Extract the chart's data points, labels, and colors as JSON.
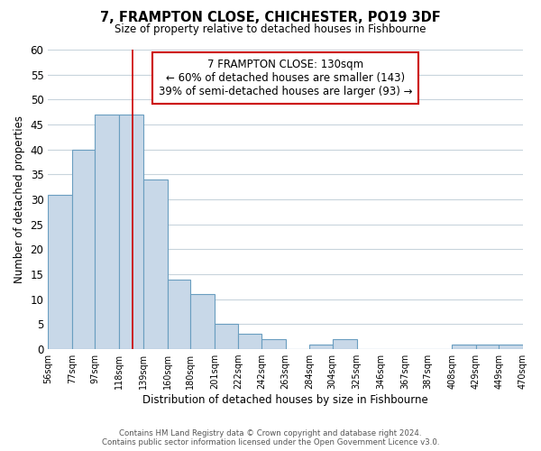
{
  "title": "7, FRAMPTON CLOSE, CHICHESTER, PO19 3DF",
  "subtitle": "Size of property relative to detached houses in Fishbourne",
  "xlabel": "Distribution of detached houses by size in Fishbourne",
  "ylabel": "Number of detached properties",
  "bar_color": "#c8d8e8",
  "bar_edge_color": "#6a9ec0",
  "background_color": "#ffffff",
  "grid_color": "#c8d4dc",
  "bin_edges": [
    56,
    77,
    97,
    118,
    139,
    160,
    180,
    201,
    222,
    242,
    263,
    284,
    304,
    325,
    346,
    367,
    387,
    408,
    429,
    449,
    470
  ],
  "counts": [
    31,
    40,
    47,
    47,
    34,
    14,
    11,
    5,
    3,
    2,
    0,
    1,
    2,
    0,
    0,
    0,
    0,
    1,
    1,
    1
  ],
  "tick_labels": [
    "56sqm",
    "77sqm",
    "97sqm",
    "118sqm",
    "139sqm",
    "160sqm",
    "180sqm",
    "201sqm",
    "222sqm",
    "242sqm",
    "263sqm",
    "284sqm",
    "304sqm",
    "325sqm",
    "346sqm",
    "367sqm",
    "387sqm",
    "408sqm",
    "429sqm",
    "449sqm",
    "470sqm"
  ],
  "annotation_title": "7 FRAMPTON CLOSE: 130sqm",
  "annotation_line1": "← 60% of detached houses are smaller (143)",
  "annotation_line2": "39% of semi-detached houses are larger (93) →",
  "annotation_box_color": "#ffffff",
  "annotation_box_edge_color": "#cc0000",
  "property_line_x": 130,
  "property_line_color": "#cc0000",
  "ylim": [
    0,
    60
  ],
  "yticks": [
    0,
    5,
    10,
    15,
    20,
    25,
    30,
    35,
    40,
    45,
    50,
    55,
    60
  ],
  "footer_line1": "Contains HM Land Registry data © Crown copyright and database right 2024.",
  "footer_line2": "Contains public sector information licensed under the Open Government Licence v3.0."
}
